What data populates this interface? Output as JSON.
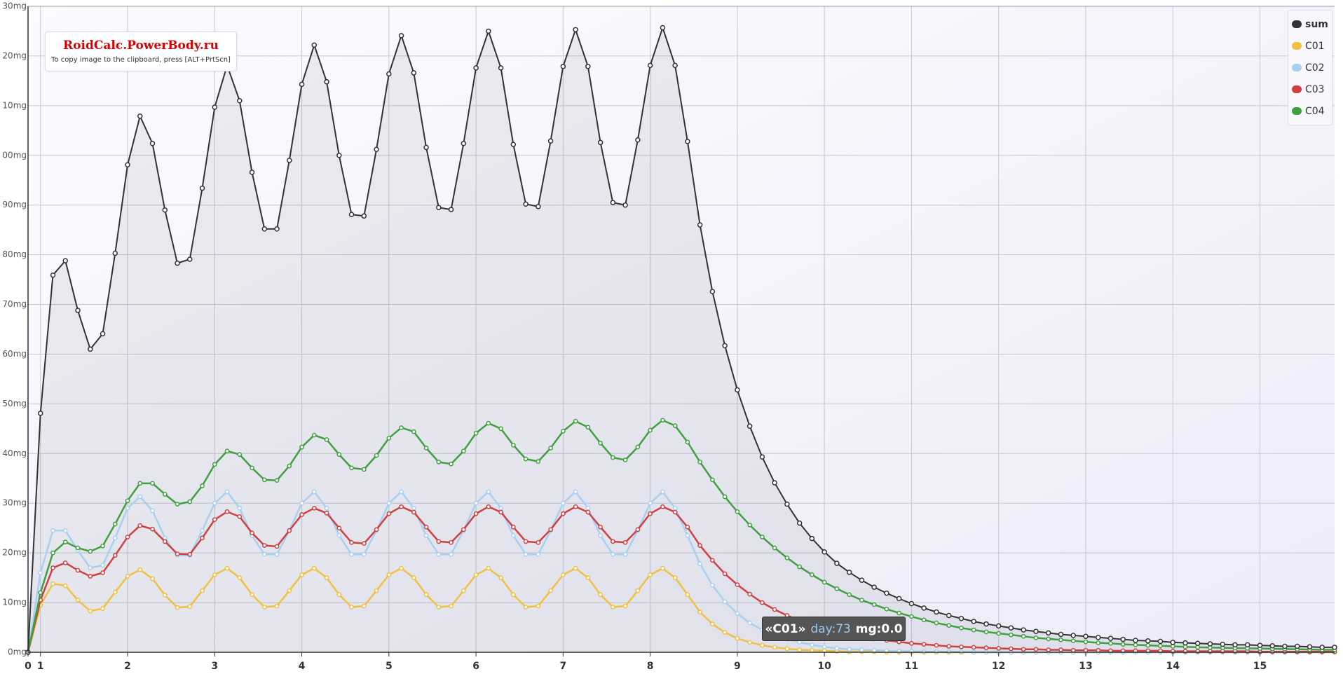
{
  "chart_data": {
    "type": "line",
    "grid": true,
    "legend": "top-right",
    "x": [
      0,
      1,
      2,
      3,
      4,
      5,
      6,
      7,
      8,
      9,
      10,
      11,
      12,
      13,
      14,
      15,
      16,
      17,
      18,
      19,
      20,
      21,
      22,
      23,
      24,
      25,
      26,
      27,
      28,
      29,
      30,
      31,
      32,
      33,
      34,
      35,
      36,
      37,
      38,
      39,
      40,
      41,
      42,
      43,
      44,
      45,
      46,
      47,
      48,
      49,
      50,
      51,
      52,
      53,
      54,
      55,
      56,
      57,
      58,
      59,
      60,
      61,
      62,
      63,
      64,
      65,
      66,
      67,
      68,
      69,
      70,
      71,
      72,
      73,
      74,
      75,
      76,
      77,
      78,
      79,
      80,
      81,
      82,
      83,
      84,
      85,
      86,
      87,
      88,
      89,
      90,
      91,
      92,
      93,
      94,
      95,
      96,
      97,
      98,
      99,
      100,
      101,
      102,
      103,
      104,
      105
    ],
    "xlim": [
      0,
      105
    ],
    "xticks": [
      0,
      1,
      {
        "value": 8,
        "label": "2"
      },
      {
        "value": 15,
        "label": "3"
      },
      {
        "value": 22,
        "label": "4"
      },
      {
        "value": 29,
        "label": "5"
      },
      {
        "value": 36,
        "label": "6"
      },
      {
        "value": 43,
        "label": "7"
      },
      {
        "value": 50,
        "label": "8"
      },
      {
        "value": 57,
        "label": "9"
      },
      {
        "value": 64,
        "label": "10"
      },
      {
        "value": 71,
        "label": "11"
      },
      {
        "value": 78,
        "label": "12"
      },
      {
        "value": 85,
        "label": "13"
      },
      {
        "value": 92,
        "label": "14"
      },
      {
        "value": 99,
        "label": "15"
      }
    ],
    "ylim": [
      0,
      130
    ],
    "yticks": [
      {
        "value": 0,
        "label": "0mg"
      },
      {
        "value": 10,
        "label": "10mg"
      },
      {
        "value": 20,
        "label": "20mg"
      },
      {
        "value": 30,
        "label": "30mg"
      },
      {
        "value": 40,
        "label": "40mg"
      },
      {
        "value": 50,
        "label": "50mg"
      },
      {
        "value": 60,
        "label": "60mg"
      },
      {
        "value": 70,
        "label": "70mg"
      },
      {
        "value": 80,
        "label": "80mg"
      },
      {
        "value": 90,
        "label": "90mg"
      },
      {
        "value": 100,
        "label": "00mg"
      },
      {
        "value": 110,
        "label": "10mg"
      },
      {
        "value": 120,
        "label": "20mg"
      },
      {
        "value": 130,
        "label": "30mg"
      }
    ],
    "series": [
      {
        "name": "sum",
        "color": "#333333",
        "values": [
          0,
          48.1,
          75.9,
          78.8,
          68.8,
          61.0,
          64.1,
          80.3,
          98.1,
          107.9,
          102.4,
          89.0,
          78.3,
          79.1,
          93.4,
          109.7,
          118.1,
          111.0,
          96.6,
          85.2,
          85.2,
          99.0,
          114.3,
          122.2,
          114.8,
          100.0,
          88.1,
          87.8,
          101.2,
          116.4,
          124.1,
          116.6,
          101.6,
          89.5,
          89.1,
          102.4,
          117.6,
          125.0,
          117.6,
          102.2,
          90.2,
          89.7,
          102.9,
          117.9,
          125.3,
          117.9,
          102.6,
          90.5,
          90.0,
          103.1,
          118.1,
          125.7,
          118.1,
          102.8,
          86.0,
          72.6,
          61.7,
          52.8,
          45.5,
          39.3,
          34.1,
          29.8,
          26.0,
          22.9,
          20.2,
          17.9,
          16.1,
          14.5,
          13.1,
          11.9,
          10.8,
          9.8,
          8.9,
          8.1,
          7.4,
          6.8,
          6.2,
          5.7,
          5.3,
          4.9,
          4.5,
          4.2,
          3.9,
          3.6,
          3.4,
          3.2,
          3.0,
          2.8,
          2.6,
          2.4,
          2.3,
          2.2,
          2.0,
          1.9,
          1.8,
          1.7,
          1.6,
          1.5,
          1.5,
          1.4,
          1.3,
          1.2,
          1.2,
          1.1,
          1.0,
          1.0
        ]
      },
      {
        "name": "C01",
        "color": "#f0c040",
        "values": [
          0,
          9.5,
          13.8,
          13.4,
          10.5,
          8.3,
          8.8,
          12.1,
          15.3,
          16.6,
          14.8,
          11.5,
          9.0,
          9.2,
          12.4,
          15.6,
          16.9,
          15.0,
          11.6,
          9.1,
          9.3,
          12.4,
          15.6,
          16.9,
          15.0,
          11.6,
          9.1,
          9.3,
          12.4,
          15.6,
          16.9,
          15.0,
          11.6,
          9.1,
          9.3,
          12.4,
          15.6,
          16.9,
          15.0,
          11.6,
          9.1,
          9.3,
          12.4,
          15.6,
          16.9,
          15.0,
          11.6,
          9.1,
          9.3,
          12.4,
          15.6,
          16.9,
          15.0,
          11.6,
          8.1,
          5.7,
          4.0,
          2.8,
          2.0,
          1.4,
          1.0,
          0.7,
          0.5,
          0.4,
          0.3,
          0.2,
          0.1,
          0.1,
          0.1,
          0,
          0,
          0,
          0,
          0,
          0,
          0,
          0,
          0,
          0,
          0,
          0,
          0,
          0,
          0,
          0,
          0,
          0,
          0,
          0,
          0,
          0,
          0,
          0,
          0,
          0,
          0,
          0,
          0,
          0,
          0,
          0,
          0,
          0,
          0,
          0,
          0
        ]
      },
      {
        "name": "C02",
        "color": "#a8d0f0",
        "values": [
          0,
          16,
          24.5,
          24.5,
          20.5,
          17,
          17.5,
          23,
          29,
          31.3,
          28.5,
          23,
          19.5,
          19.5,
          24.5,
          30,
          32.3,
          29,
          23.5,
          19.7,
          19.7,
          24.5,
          30,
          32.3,
          29,
          23.5,
          19.7,
          19.7,
          24.5,
          30,
          32.3,
          29,
          23.5,
          19.7,
          19.7,
          24.5,
          30,
          32.3,
          29,
          23.5,
          19.7,
          19.7,
          24.5,
          30,
          32.3,
          29,
          23.5,
          19.7,
          19.7,
          24.5,
          30,
          32.3,
          29,
          23.5,
          17.8,
          13.5,
          10.2,
          7.8,
          5.9,
          4.5,
          3.4,
          2.6,
          2.0,
          1.5,
          1.1,
          0.8,
          0.6,
          0.5,
          0.4,
          0.3,
          0.2,
          0.2,
          0.1,
          0.1,
          0.1,
          0.1,
          0,
          0,
          0,
          0,
          0,
          0,
          0,
          0,
          0,
          0,
          0,
          0,
          0,
          0,
          0,
          0,
          0,
          0,
          0,
          0,
          0,
          0,
          0,
          0,
          0,
          0,
          0,
          0,
          0,
          0
        ]
      },
      {
        "name": "C03",
        "color": "#d04040",
        "values": [
          0,
          10.5,
          17,
          18,
          16.5,
          15.3,
          16,
          19.5,
          23.2,
          25.5,
          24.8,
          22.3,
          19.8,
          19.7,
          23,
          26.7,
          28.3,
          27.3,
          24,
          21.5,
          21.3,
          24.5,
          27.7,
          29.0,
          28.0,
          25.0,
          22.1,
          21.9,
          24.7,
          27.9,
          29.3,
          28.2,
          25.2,
          22.3,
          22.1,
          24.7,
          27.9,
          29.3,
          28.2,
          25.2,
          22.3,
          22.1,
          24.7,
          27.9,
          29.3,
          28.2,
          25.2,
          22.3,
          22.1,
          24.7,
          27.9,
          29.3,
          28.2,
          25.2,
          21.5,
          18.5,
          15.8,
          13.6,
          11.7,
          10.0,
          8.6,
          7.4,
          6.4,
          5.5,
          4.8,
          4.1,
          3.6,
          3.1,
          2.7,
          2.4,
          2.1,
          1.8,
          1.6,
          1.4,
          1.2,
          1.1,
          1.0,
          0.9,
          0.8,
          0.7,
          0.6,
          0.6,
          0.5,
          0.5,
          0.4,
          0.4,
          0.4,
          0.3,
          0.3,
          0.3,
          0.3,
          0.3,
          0.2,
          0.2,
          0.2,
          0.2,
          0.2,
          0.2,
          0.2,
          0.1,
          0.1,
          0.1,
          0.1,
          0.1,
          0.1,
          0.1
        ]
      },
      {
        "name": "C04",
        "color": "#40a040",
        "values": [
          0,
          12,
          20,
          22.2,
          21,
          20.3,
          21.4,
          25.8,
          30.5,
          34,
          34,
          31.8,
          29.8,
          30.3,
          33.5,
          37.8,
          40.5,
          39.8,
          37.1,
          34.7,
          34.6,
          37.5,
          41.3,
          43.7,
          42.8,
          39.8,
          37.1,
          36.8,
          39.6,
          43.1,
          45.2,
          44.4,
          41.1,
          38.3,
          37.9,
          40.5,
          44.1,
          46.1,
          45.0,
          41.7,
          38.9,
          38.4,
          41.1,
          44.5,
          46.5,
          45.3,
          42.1,
          39.2,
          38.7,
          41.3,
          44.7,
          46.7,
          45.6,
          42.3,
          38.3,
          34.7,
          31.3,
          28.3,
          25.6,
          23.2,
          21.0,
          19.0,
          17.2,
          15.6,
          14.1,
          12.8,
          11.6,
          10.5,
          9.6,
          8.7,
          7.9,
          7.2,
          6.5,
          5.9,
          5.4,
          4.9,
          4.5,
          4.1,
          3.8,
          3.5,
          3.2,
          2.9,
          2.7,
          2.5,
          2.3,
          2.1,
          1.9,
          1.8,
          1.6,
          1.5,
          1.4,
          1.3,
          1.2,
          1.1,
          1.0,
          0.95,
          0.9,
          0.85,
          0.8,
          0.75,
          0.7,
          0.65,
          0.6,
          0.55,
          0.5,
          0.5
        ]
      }
    ]
  },
  "watermark": {
    "title": "RoidCalc.PowerBody.ru",
    "note": "To copy image to the clipboard, press [ALT+PrtScn]"
  },
  "tooltip": {
    "series": "«C01»",
    "day": "day:73",
    "mg": "mg:0.0"
  }
}
